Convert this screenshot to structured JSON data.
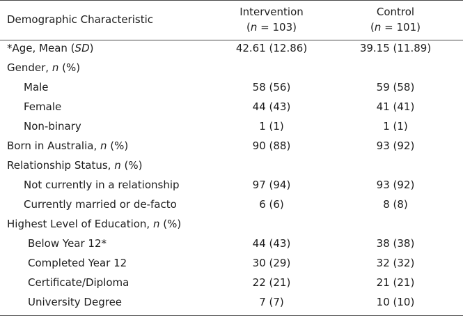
{
  "header": {
    "characteristic": "Demographic Characteristic",
    "intervention": "Intervention",
    "intervention_n": "(n = 103)",
    "control": "Control",
    "control_n": "(n = 101)"
  },
  "rows": [
    {
      "label": "*Age, Mean (SD)",
      "intervention": "42.61 (12.86)",
      "control": "39.15 (11.89)"
    },
    {
      "label": "Gender, n (%)",
      "intervention": "",
      "control": ""
    },
    {
      "label": "Male",
      "intervention": "58 (56)",
      "control": "59 (58)"
    },
    {
      "label": "Female",
      "intervention": "44 (43)",
      "control": "41 (41)"
    },
    {
      "label": "Non-binary",
      "intervention": "1 (1)",
      "control": "1 (1)"
    },
    {
      "label": "Born in Australia, n (%)",
      "intervention": "90 (88)",
      "control": "93 (92)"
    },
    {
      "label": "Relationship Status, n (%)",
      "intervention": "",
      "control": ""
    },
    {
      "label": "Not currently in a relationship",
      "intervention": "97 (94)",
      "control": "93 (92)"
    },
    {
      "label": "Currently married or de-facto",
      "intervention": "6 (6)",
      "control": "8 (8)"
    },
    {
      "label": "Highest Level of Education, n (%)",
      "intervention": "",
      "control": ""
    },
    {
      "label": "Below Year 12*",
      "intervention": "44 (43)",
      "control": "38 (38)"
    },
    {
      "label": "Completed Year 12",
      "intervention": "30 (29)",
      "control": "32 (32)"
    },
    {
      "label": "Certificate/Diploma",
      "intervention": "22 (21)",
      "control": "21 (21)"
    },
    {
      "label": "University Degree",
      "intervention": "7 (7)",
      "control": "10 (10)"
    }
  ]
}
